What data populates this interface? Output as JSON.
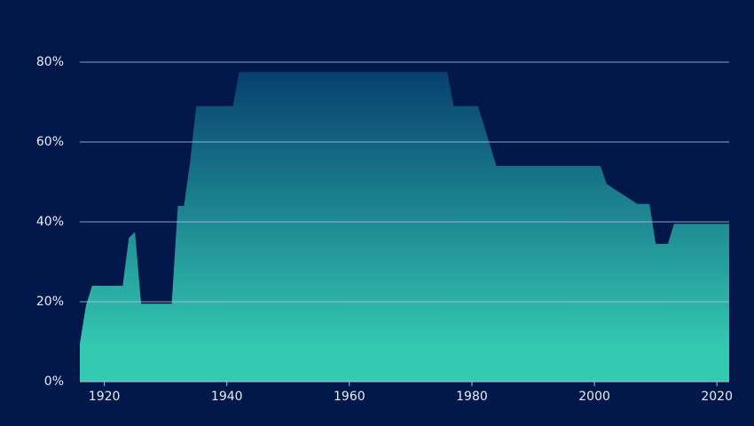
{
  "chart_data": {
    "type": "area",
    "x": [
      1916,
      1917,
      1918,
      1919,
      1920,
      1921,
      1922,
      1923,
      1924,
      1925,
      1926,
      1927,
      1928,
      1929,
      1930,
      1931,
      1932,
      1933,
      1934,
      1935,
      1936,
      1937,
      1938,
      1939,
      1940,
      1941,
      1942,
      1943,
      1944,
      1945,
      1946,
      1947,
      1948,
      1949,
      1950,
      1951,
      1952,
      1953,
      1954,
      1955,
      1956,
      1957,
      1958,
      1959,
      1960,
      1961,
      1962,
      1963,
      1964,
      1965,
      1966,
      1967,
      1968,
      1969,
      1970,
      1971,
      1972,
      1973,
      1974,
      1975,
      1976,
      1977,
      1978,
      1979,
      1980,
      1981,
      1982,
      1983,
      1984,
      1985,
      1986,
      1987,
      1988,
      1989,
      1990,
      1991,
      1992,
      1993,
      1994,
      1995,
      1996,
      1997,
      1998,
      1999,
      2000,
      2001,
      2002,
      2003,
      2004,
      2005,
      2006,
      2007,
      2008,
      2009,
      2010,
      2011,
      2012,
      2013,
      2014,
      2015,
      2016,
      2017,
      2018,
      2019,
      2020,
      2021,
      2022
    ],
    "values": [
      9.5,
      19,
      24,
      24,
      24,
      24,
      24,
      24,
      36,
      37.5,
      19.5,
      19.5,
      19.5,
      19.5,
      19.5,
      19.5,
      44,
      44,
      55,
      69,
      69,
      69,
      69,
      69,
      69,
      69,
      77.5,
      77.5,
      77.5,
      77.5,
      77.5,
      77.5,
      77.5,
      77.5,
      77.5,
      77.5,
      77.5,
      77.5,
      77.5,
      77.5,
      77.5,
      77.5,
      77.5,
      77.5,
      77.5,
      77.5,
      77.5,
      77.5,
      77.5,
      77.5,
      77.5,
      77.5,
      77.5,
      77.5,
      77.5,
      77.5,
      77.5,
      77.5,
      77.5,
      77.5,
      77.5,
      69,
      69,
      69,
      69,
      69,
      64,
      59,
      54,
      54,
      54,
      54,
      54,
      54,
      54,
      54,
      54,
      54,
      54,
      54,
      54,
      54,
      54,
      54,
      54,
      54,
      49.5,
      48.5,
      47.5,
      46.5,
      45.5,
      44.5,
      44.5,
      44.5,
      34.5,
      34.5,
      34.5,
      39.5,
      39.5,
      39.5,
      39.5,
      39.5,
      39.5,
      39.5,
      39.5,
      39.5,
      39.5
    ],
    "xlim": [
      1916,
      2022
    ],
    "xticks": [
      1920,
      1940,
      1960,
      1980,
      2000,
      2020
    ],
    "ylim": [
      0,
      80
    ],
    "yticks": [
      {
        "value": 0,
        "label": "0%"
      },
      {
        "value": 20,
        "label": "20%"
      },
      {
        "value": 40,
        "label": "40%"
      },
      {
        "value": 60,
        "label": "60%"
      },
      {
        "value": 80,
        "label": "80%"
      }
    ],
    "grid": true,
    "color": [
      "#07406f",
      "#34cab2"
    ]
  }
}
